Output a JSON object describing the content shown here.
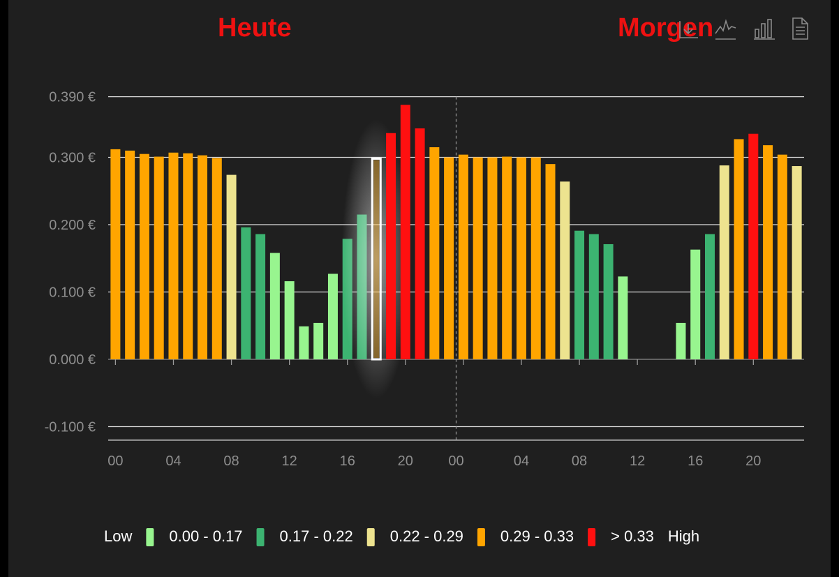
{
  "titles": {
    "today": "Heute",
    "tomorrow": "Morgen"
  },
  "toolbar": {
    "icons": [
      "zoom-icon",
      "line-chart-icon",
      "bar-chart-icon",
      "document-icon"
    ]
  },
  "colors": {
    "background": "#1f1f1f",
    "title": "#ee1111",
    "low": "#98f58f",
    "midlow": "#3cb371",
    "mid": "#ede38f",
    "midhigh": "#ffa500",
    "high": "#ff1010"
  },
  "chart_data": {
    "type": "bar",
    "title": "",
    "xlabel": "",
    "ylabel": "",
    "ylim": [
      -0.12,
      0.39
    ],
    "grid": true,
    "y_ticks": [
      "0.390 €",
      "0.300 €",
      "0.200 €",
      "0.100 €",
      "0.000 €",
      "-0.100 €"
    ],
    "y_tick_values": [
      0.39,
      0.3,
      0.2,
      0.1,
      0.0,
      -0.1
    ],
    "x_tick_labels": [
      "00",
      "04",
      "08",
      "12",
      "16",
      "20",
      "00",
      "04",
      "08",
      "12",
      "16",
      "20"
    ],
    "day_separator_label": "00",
    "highlighted_hour": 18,
    "hours": [
      "00",
      "01",
      "02",
      "03",
      "04",
      "05",
      "06",
      "07",
      "08",
      "09",
      "10",
      "11",
      "12",
      "13",
      "14",
      "15",
      "16",
      "17",
      "18",
      "19",
      "20",
      "21",
      "22",
      "23",
      "00",
      "01",
      "02",
      "03",
      "04",
      "05",
      "06",
      "07",
      "08",
      "09",
      "10",
      "11",
      "12",
      "13",
      "14",
      "15",
      "16",
      "17",
      "18",
      "19",
      "20",
      "21",
      "22",
      "23"
    ],
    "values": [
      0.312,
      0.31,
      0.305,
      0.301,
      0.307,
      0.306,
      0.303,
      0.299,
      0.274,
      0.196,
      0.186,
      0.158,
      0.116,
      0.049,
      0.054,
      0.127,
      0.179,
      0.215,
      0.298,
      0.336,
      0.378,
      0.343,
      0.315,
      0.3,
      0.304,
      0.3,
      0.3,
      0.301,
      0.3,
      0.3,
      0.29,
      0.264,
      0.191,
      0.186,
      0.171,
      0.123,
      0,
      0,
      0,
      0.054,
      0.163,
      0.186,
      0.288,
      0.327,
      0.335,
      0.318,
      0.304,
      0.287
    ],
    "legend": [
      {
        "label": "Low",
        "color": null
      },
      {
        "label": "0.00 - 0.17",
        "color": "#98f58f"
      },
      {
        "label": "0.17 - 0.22",
        "color": "#3cb371"
      },
      {
        "label": "0.22 - 0.29",
        "color": "#ede38f"
      },
      {
        "label": "0.29 - 0.33",
        "color": "#ffa500"
      },
      {
        "label": "> 0.33",
        "color": "#ff1010"
      },
      {
        "label": "High",
        "color": null
      }
    ]
  }
}
